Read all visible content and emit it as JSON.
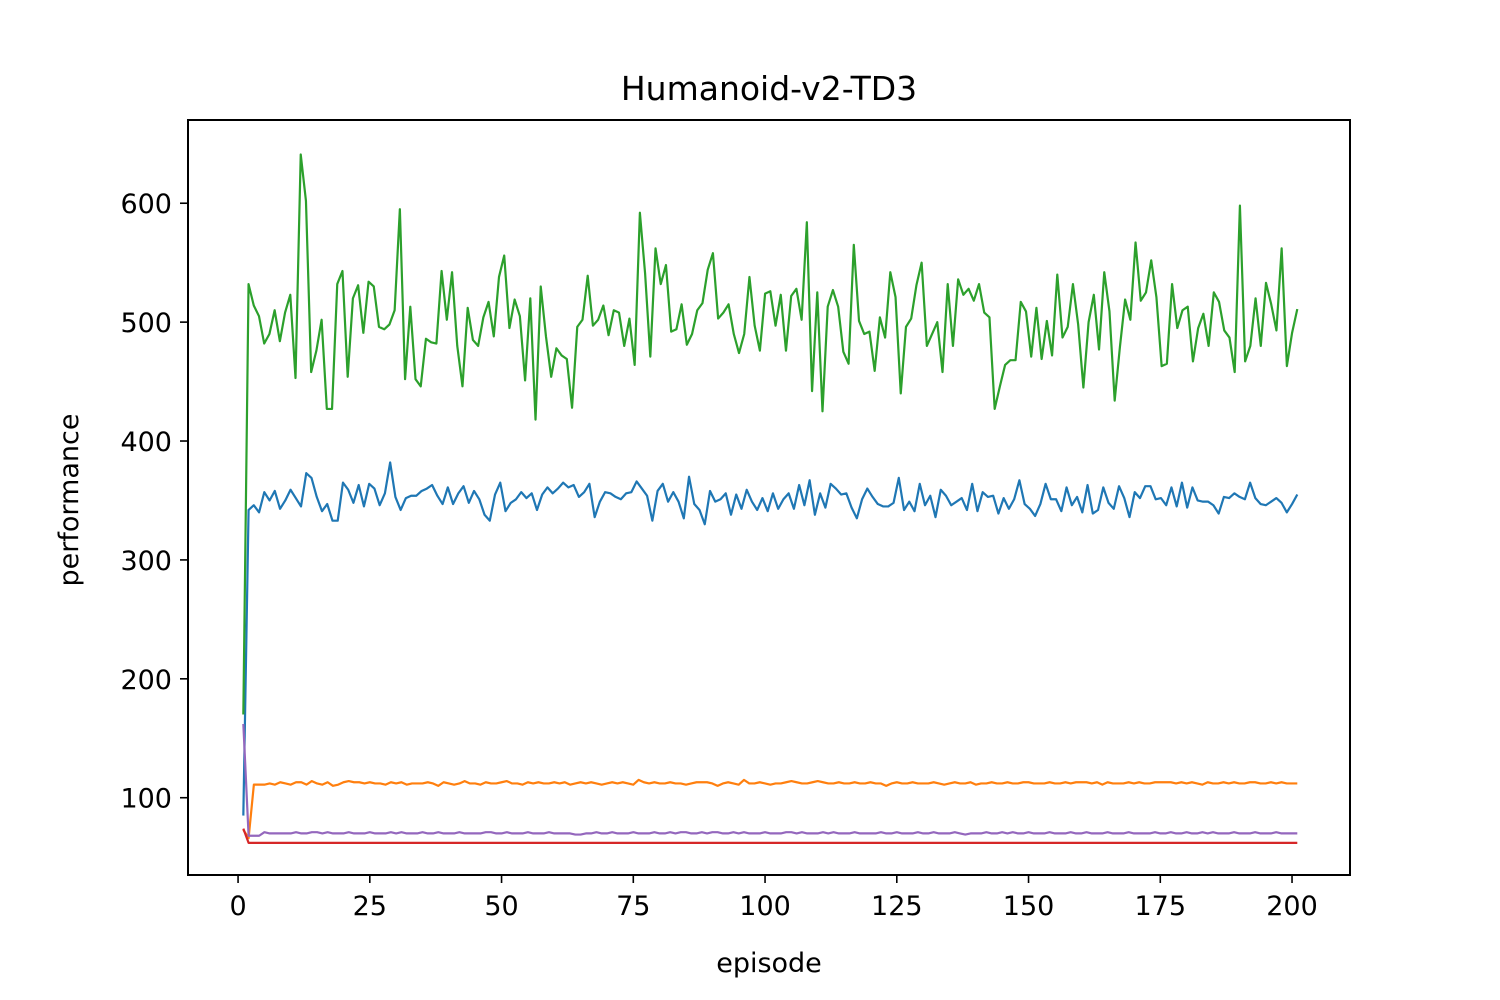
{
  "chart_data": {
    "type": "line",
    "title": "Humanoid-v2-TD3",
    "xlabel": "episode",
    "ylabel": "performance",
    "xlim": [
      -9.5,
      211
    ],
    "ylim": [
      35,
      670
    ],
    "xticks": [
      0,
      25,
      50,
      75,
      100,
      125,
      150,
      175,
      200
    ],
    "yticks": [
      100,
      200,
      300,
      400,
      500,
      600
    ],
    "grid": false,
    "legend": "none",
    "x": {
      "start": 1,
      "end": 201
    },
    "series": [
      {
        "color": "#1f77b4",
        "values": [
          85,
          342,
          346,
          340,
          357,
          350,
          358,
          343,
          350,
          359,
          352,
          345,
          373,
          369,
          353,
          341,
          347,
          333,
          333,
          365,
          359,
          348,
          363,
          345,
          364,
          360,
          346,
          356,
          382,
          353,
          342,
          352,
          354,
          354,
          358,
          360,
          363,
          354,
          347,
          361,
          347,
          356,
          362,
          348,
          358,
          351,
          338,
          333,
          355,
          365,
          341,
          348,
          351,
          357,
          352,
          356,
          342,
          355,
          361,
          356,
          360,
          365,
          361,
          363,
          353,
          357,
          364,
          336,
          349,
          357,
          356,
          353,
          351,
          356,
          357,
          366,
          360,
          354,
          333,
          358,
          364,
          349,
          357,
          349,
          335,
          370,
          347,
          342,
          330,
          358,
          349,
          351,
          356,
          338,
          355,
          343,
          359,
          349,
          342,
          352,
          341,
          356,
          343,
          351,
          356,
          343,
          363,
          346,
          367,
          338,
          356,
          344,
          364,
          360,
          355,
          356,
          344,
          335,
          351,
          360,
          353,
          347,
          345,
          345,
          348,
          369,
          342,
          349,
          341,
          364,
          346,
          354,
          336,
          359,
          354,
          346,
          349,
          352,
          342,
          364,
          341,
          357,
          353,
          354,
          339,
          352,
          343,
          351,
          367,
          347,
          343,
          337,
          347,
          364,
          351,
          351,
          341,
          361,
          346,
          353,
          340,
          363,
          339,
          342,
          361,
          348,
          343,
          362,
          352,
          336,
          357,
          352,
          362,
          362,
          351,
          352,
          346,
          361,
          345,
          365,
          344,
          361,
          350,
          349,
          349,
          346,
          339,
          353,
          352,
          356,
          353,
          351,
          365,
          352,
          347,
          346,
          349,
          352,
          348,
          340,
          347,
          355
        ]
      },
      {
        "color": "#ff7f0e",
        "values": [
          73,
          66,
          111,
          111,
          111,
          112,
          111,
          113,
          112,
          111,
          113,
          113,
          111,
          114,
          112,
          111,
          113,
          110,
          111,
          113,
          114,
          113,
          113,
          112,
          113,
          112,
          112,
          111,
          113,
          112,
          113,
          111,
          112,
          112,
          112,
          113,
          112,
          110,
          113,
          112,
          111,
          112,
          114,
          112,
          112,
          111,
          113,
          112,
          112,
          113,
          114,
          112,
          112,
          111,
          113,
          112,
          113,
          112,
          112,
          113,
          112,
          113,
          111,
          112,
          113,
          112,
          113,
          112,
          111,
          112,
          113,
          112,
          113,
          112,
          111,
          115,
          113,
          112,
          113,
          112,
          112,
          113,
          112,
          112,
          111,
          112,
          113,
          113,
          113,
          112,
          110,
          112,
          113,
          112,
          111,
          115,
          112,
          112,
          113,
          112,
          111,
          112,
          112,
          113,
          114,
          113,
          112,
          112,
          113,
          114,
          113,
          112,
          112,
          113,
          112,
          112,
          113,
          112,
          112,
          113,
          112,
          112,
          110,
          112,
          113,
          112,
          112,
          113,
          112,
          112,
          112,
          113,
          112,
          111,
          112,
          113,
          112,
          112,
          113,
          111,
          112,
          112,
          113,
          112,
          112,
          113,
          112,
          112,
          113,
          113,
          112,
          112,
          112,
          113,
          112,
          112,
          113,
          112,
          113,
          113,
          113,
          112,
          113,
          111,
          113,
          112,
          112,
          112,
          113,
          112,
          113,
          112,
          112,
          113,
          113,
          113,
          113,
          112,
          113,
          112,
          113,
          112,
          111,
          113,
          112,
          112,
          113,
          112,
          113,
          112,
          112,
          113,
          113,
          112,
          112,
          113,
          112,
          113,
          112,
          112,
          112
        ]
      },
      {
        "color": "#2ca02c",
        "values": [
          170,
          532,
          514,
          505,
          482,
          490,
          510,
          484,
          508,
          523,
          453,
          641,
          602,
          458,
          476,
          502,
          427,
          427,
          532,
          543,
          454,
          520,
          531,
          491,
          534,
          530,
          496,
          494,
          498,
          510,
          595,
          452,
          513,
          452,
          446,
          486,
          483,
          482,
          543,
          502,
          542,
          480,
          446,
          512,
          485,
          480,
          504,
          517,
          488,
          538,
          556,
          495,
          519,
          505,
          451,
          520,
          418,
          530,
          488,
          454,
          478,
          472,
          469,
          428,
          496,
          502,
          539,
          497,
          502,
          514,
          489,
          510,
          508,
          480,
          503,
          464,
          592,
          541,
          471,
          562,
          532,
          548,
          492,
          494,
          515,
          481,
          490,
          510,
          516,
          544,
          558,
          503,
          508,
          515,
          490,
          474,
          490,
          538,
          497,
          476,
          524,
          526,
          497,
          523,
          476,
          522,
          528,
          502,
          584,
          442,
          525,
          425,
          513,
          527,
          513,
          475,
          465,
          565,
          501,
          490,
          492,
          459,
          504,
          487,
          542,
          521,
          440,
          496,
          503,
          531,
          550,
          480,
          490,
          500,
          458,
          532,
          480,
          536,
          523,
          528,
          518,
          532,
          508,
          504,
          427,
          446,
          464,
          468,
          468,
          517,
          509,
          471,
          512,
          469,
          501,
          472,
          540,
          487,
          496,
          532,
          498,
          445,
          500,
          523,
          477,
          542,
          509,
          434,
          479,
          519,
          502,
          567,
          518,
          525,
          552,
          521,
          463,
          465,
          532,
          495,
          510,
          513,
          467,
          495,
          507,
          480,
          525,
          517,
          493,
          487,
          458,
          598,
          467,
          480,
          520,
          480,
          533,
          515,
          493,
          562,
          463,
          491,
          511
        ]
      },
      {
        "color": "#d62728",
        "values": [
          74,
          62,
          62,
          62,
          62,
          62,
          62,
          62,
          62,
          62,
          62,
          62,
          62,
          62,
          62,
          62,
          62,
          62,
          62,
          62,
          62,
          62,
          62,
          62,
          62,
          62,
          62,
          62,
          62,
          62,
          62,
          62,
          62,
          62,
          62,
          62,
          62,
          62,
          62,
          62,
          62,
          62,
          62,
          62,
          62,
          62,
          62,
          62,
          62,
          62,
          62,
          62,
          62,
          62,
          62,
          62,
          62,
          62,
          62,
          62,
          62,
          62,
          62,
          62,
          62,
          62,
          62,
          62,
          62,
          62,
          62,
          62,
          62,
          62,
          62,
          62,
          62,
          62,
          62,
          62,
          62,
          62,
          62,
          62,
          62,
          62,
          62,
          62,
          62,
          62,
          62,
          62,
          62,
          62,
          62,
          62,
          62,
          62,
          62,
          62,
          62,
          62,
          62,
          62,
          62,
          62,
          62,
          62,
          62,
          62,
          62,
          62,
          62,
          62,
          62,
          62,
          62,
          62,
          62,
          62,
          62,
          62,
          62,
          62,
          62,
          62,
          62,
          62,
          62,
          62,
          62,
          62,
          62,
          62,
          62,
          62,
          62,
          62,
          62,
          62,
          62,
          62,
          62,
          62,
          62,
          62,
          62,
          62,
          62,
          62,
          62,
          62,
          62,
          62,
          62,
          62,
          62,
          62,
          62,
          62,
          62,
          62,
          62,
          62,
          62,
          62,
          62,
          62,
          62,
          62,
          62,
          62,
          62,
          62,
          62,
          62,
          62,
          62,
          62,
          62,
          62,
          62,
          62,
          62,
          62,
          62,
          62,
          62,
          62,
          62,
          62,
          62,
          62,
          62,
          62,
          62,
          62,
          62,
          62,
          62,
          62
        ]
      },
      {
        "color": "#9467bd",
        "values": [
          162,
          68,
          68,
          68,
          71,
          70,
          70,
          70,
          70,
          70,
          71,
          70,
          70,
          71,
          71,
          70,
          71,
          70,
          70,
          70,
          71,
          70,
          70,
          70,
          71,
          70,
          70,
          70,
          71,
          70,
          71,
          70,
          70,
          70,
          71,
          70,
          70,
          71,
          70,
          70,
          70,
          71,
          70,
          70,
          70,
          70,
          71,
          71,
          70,
          70,
          71,
          70,
          70,
          70,
          71,
          70,
          70,
          70,
          71,
          70,
          70,
          70,
          70,
          69,
          69,
          70,
          70,
          71,
          70,
          70,
          71,
          70,
          70,
          70,
          71,
          70,
          70,
          70,
          71,
          70,
          70,
          71,
          70,
          71,
          71,
          70,
          70,
          71,
          70,
          71,
          71,
          70,
          70,
          71,
          70,
          71,
          70,
          70,
          70,
          71,
          70,
          70,
          70,
          71,
          71,
          70,
          71,
          70,
          70,
          70,
          71,
          70,
          71,
          70,
          70,
          70,
          71,
          70,
          70,
          70,
          70,
          71,
          70,
          70,
          71,
          70,
          70,
          70,
          71,
          70,
          70,
          71,
          70,
          70,
          70,
          71,
          70,
          69,
          70,
          70,
          70,
          71,
          70,
          70,
          71,
          70,
          71,
          70,
          70,
          71,
          70,
          70,
          70,
          71,
          70,
          70,
          70,
          71,
          70,
          70,
          71,
          70,
          70,
          70,
          71,
          70,
          70,
          70,
          71,
          70,
          70,
          70,
          70,
          71,
          70,
          70,
          71,
          70,
          70,
          71,
          70,
          70,
          71,
          70,
          71,
          70,
          70,
          70,
          71,
          70,
          70,
          70,
          71,
          70,
          70,
          70,
          71,
          70,
          70,
          70,
          70
        ]
      }
    ]
  }
}
